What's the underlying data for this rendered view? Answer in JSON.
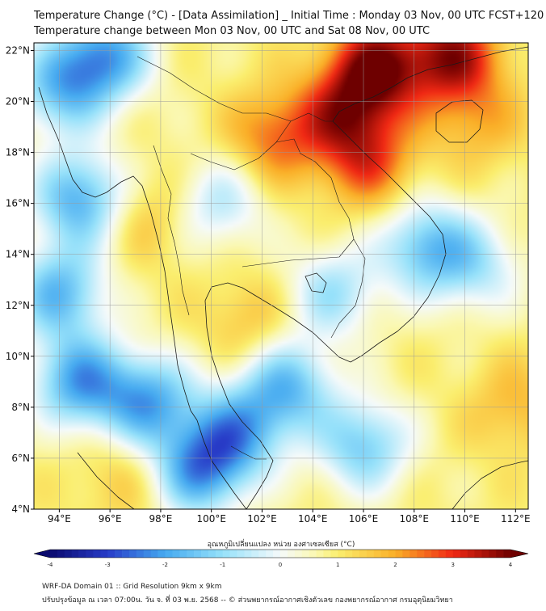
{
  "title_line1": "Temperature Change (°C) - [Data Assimilation] _ Initial Time : Monday 03 Nov, 00 UTC FCST+120",
  "title_line2": "Temperature change between Mon 03 Nov, 00 UTC and Sat 08 Nov, 00 UTC",
  "map": {
    "lon_range": [
      93,
      112.5
    ],
    "lat_range": [
      4,
      22.3
    ],
    "lon_ticks": [
      94,
      96,
      98,
      100,
      102,
      104,
      106,
      108,
      110,
      112
    ],
    "lon_tick_labels": [
      "94°E",
      "96°E",
      "98°E",
      "100°E",
      "102°E",
      "104°E",
      "106°E",
      "108°E",
      "110°E",
      "112°E"
    ],
    "lat_ticks": [
      4,
      6,
      8,
      10,
      12,
      14,
      16,
      18,
      20,
      22
    ],
    "lat_tick_labels": [
      "4°N",
      "6°N",
      "8°N",
      "10°N",
      "12°N",
      "14°N",
      "16°N",
      "18°N",
      "20°N",
      "22°N"
    ],
    "grid": true
  },
  "field": {
    "background_value": 0.9,
    "anomalies": [
      {
        "lon": 106.5,
        "lat": 21.3,
        "value": 3.8
      },
      {
        "lon": 109.5,
        "lat": 21.8,
        "value": 3.5
      },
      {
        "lon": 105.2,
        "lat": 19.5,
        "value": 2.8
      },
      {
        "lon": 106.2,
        "lat": 17.6,
        "value": 2.6
      },
      {
        "lon": 102.5,
        "lat": 18.6,
        "value": 2.5
      },
      {
        "lon": 110.5,
        "lat": 19.3,
        "value": 1.9
      },
      {
        "lon": 97.5,
        "lat": 15.5,
        "value": 1.7
      },
      {
        "lon": 101.5,
        "lat": 11.4,
        "value": 1.7
      },
      {
        "lon": 112,
        "lat": 8,
        "value": 1.8
      },
      {
        "lon": 96.5,
        "lat": 5.3,
        "value": 1.6
      },
      {
        "lon": 95.8,
        "lat": 21.8,
        "value": -1.9
      },
      {
        "lon": 94,
        "lat": 20.5,
        "value": -1.3
      },
      {
        "lon": 94.8,
        "lat": 16.2,
        "value": -1.8
      },
      {
        "lon": 94,
        "lat": 12.5,
        "value": -1.6
      },
      {
        "lon": 94.8,
        "lat": 9,
        "value": -1.9
      },
      {
        "lon": 97.5,
        "lat": 8.2,
        "value": -1.8
      },
      {
        "lon": 99.5,
        "lat": 5.5,
        "value": -1.9
      },
      {
        "lon": 101,
        "lat": 7,
        "value": -1.5
      },
      {
        "lon": 103,
        "lat": 8.8,
        "value": -1.5
      },
      {
        "lon": 106,
        "lat": 6.5,
        "value": -1.3
      },
      {
        "lon": 108.5,
        "lat": 14.3,
        "value": -1.4
      },
      {
        "lon": 104.8,
        "lat": 12.5,
        "value": -0.8
      },
      {
        "lon": 110.5,
        "lat": 13.5,
        "value": -0.5
      },
      {
        "lon": 100.3,
        "lat": 16,
        "value": -0.6
      }
    ]
  },
  "colorbar": {
    "title": "อุณหภูมิเปลี่ยนแปลง หน่วย องศาเซลเซียส (°C)",
    "min": -4,
    "max": 4,
    "ticks": [
      -4,
      -3,
      -2,
      -1,
      0,
      1,
      2,
      3,
      4
    ],
    "tick_labels": [
      "-4",
      "-3",
      "-2",
      "-1",
      "0",
      "1",
      "2",
      "3",
      "4"
    ]
  },
  "footer_line1": "WRF-DA Domain 01 :: Grid Resolution 9km x 9km",
  "footer_line2": "ปรับปรุงข้อมูล ณ เวลา 07:00น. วัน จ. ที่ 03 พ.ย. 2568 -- © ส่วนพยากรณ์อากาศเชิงตัวเลข กองพยากรณ์อากาศ กรมอุตุนิยมวิทยา"
}
